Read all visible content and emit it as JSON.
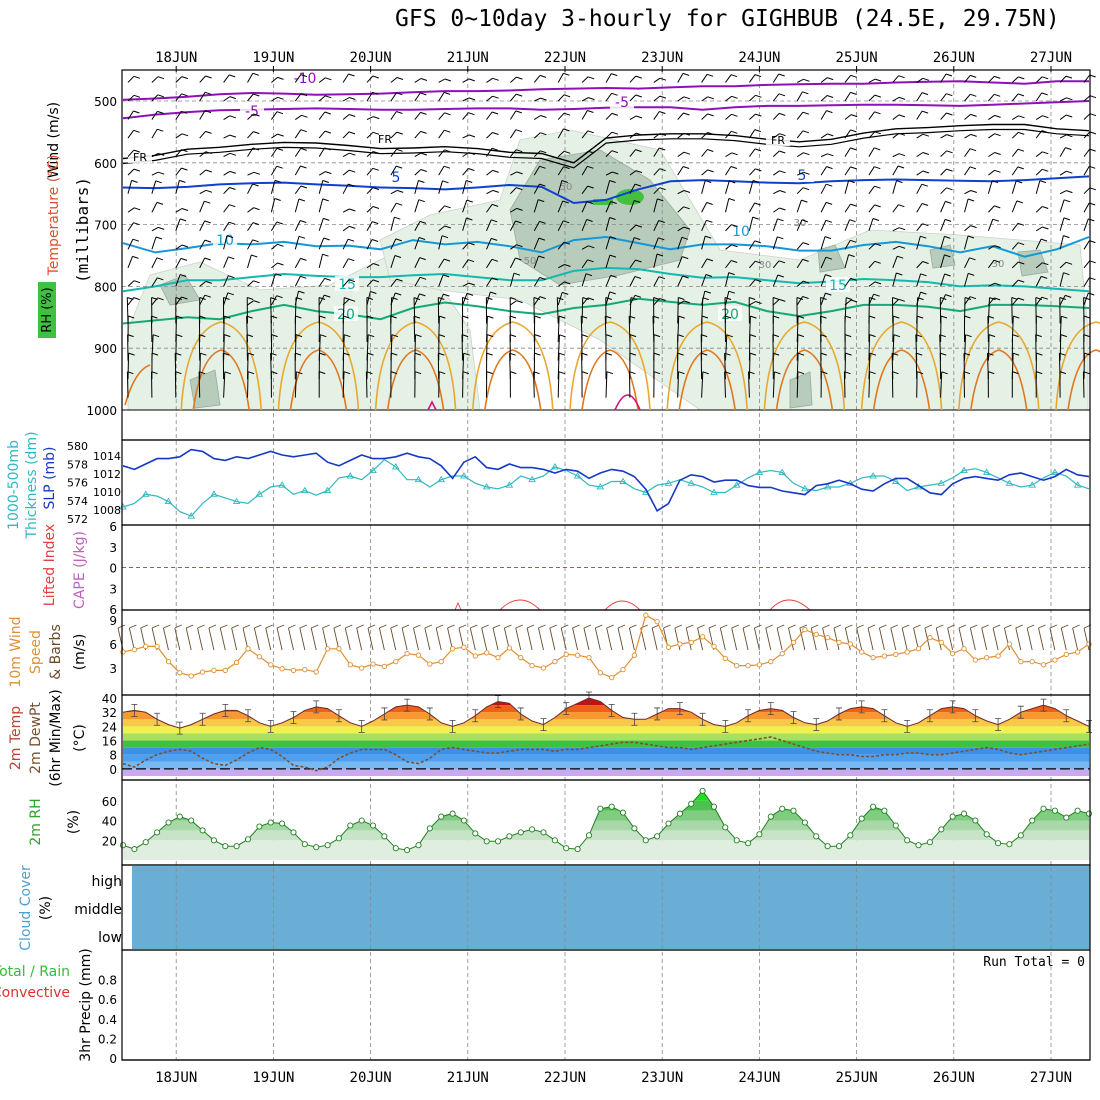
{
  "title": "GFS 0~10day 3-hourly for GIGHBUB (24.5E, 29.75N)",
  "dates": [
    "18JUN",
    "19JUN",
    "20JUN",
    "21JUN",
    "22JUN",
    "23JUN",
    "24JUN",
    "25JUN",
    "26JUN",
    "27JUN"
  ],
  "panel_labels": {
    "profile": {
      "wind": "Wind (m/s)",
      "temp": "Temperature (°C)",
      "rh": "RH (%)",
      "units": "(millibars)"
    },
    "thickness": {
      "a": "1000-500mb",
      "b": "Thickness (dm)",
      "c": "SLP (mb)"
    },
    "li": {
      "a": "Lifted Index",
      "b": "CAPE (J/kg)"
    },
    "wind10": {
      "a": "10m Wind",
      "b": "Speed",
      "c": "& Barbs",
      "d": "(m/s)"
    },
    "temp2m": {
      "a": "2m Temp",
      "b": "2m DewPt",
      "c": "(6hr Min/Max)",
      "d": "(°C)"
    },
    "rh2m": {
      "a": "2m RH",
      "b": "(%)"
    },
    "cloud": {
      "a": "Cloud Cover",
      "b": "(%)",
      "high": "high",
      "middle": "middle",
      "low": "low"
    },
    "precip": {
      "a": "Total / Rain",
      "b": "Convective",
      "c": "3hr Precip (mm)",
      "run_total": "Run Total = 0"
    }
  },
  "chart_data": [
    {
      "type": "contour",
      "name": "pressure-profile",
      "ylabel": "millibars",
      "yticks": [
        500,
        600,
        700,
        800,
        900,
        1000
      ],
      "ylim": [
        1000,
        450
      ],
      "temperature_labels": [
        "-10",
        "-5",
        "-5",
        "FR",
        "FR",
        "FR",
        "5",
        "5",
        "10",
        "10",
        "15",
        "15",
        "20",
        "20"
      ],
      "rh_labels": [
        "30",
        "30",
        "30",
        "50",
        "50"
      ],
      "temperature_isotherms": [
        {
          "label": "-10",
          "color": "#9010b8",
          "mb": [
            498,
            496,
            493,
            489,
            487,
            488,
            490,
            489,
            488,
            486,
            484,
            484,
            483,
            481,
            480,
            479,
            480,
            478,
            476,
            476,
            474,
            473,
            472,
            472,
            470,
            469,
            468,
            470,
            472,
            468,
            468
          ]
        },
        {
          "label": "-5",
          "color": "#9010b8",
          "mb": [
            528,
            522,
            518,
            515,
            514,
            513,
            512,
            513,
            514,
            514,
            513,
            512,
            512,
            514,
            513,
            511,
            510,
            510,
            514,
            510,
            508,
            508,
            507,
            506,
            506,
            507,
            508,
            506,
            504,
            502,
            500
          ]
        },
        {
          "label": "FR",
          "color": "#000000",
          "mb": [
            593,
            588,
            578,
            575,
            570,
            567,
            568,
            572,
            577,
            576,
            574,
            577,
            583,
            585,
            600,
            560,
            555,
            553,
            553,
            556,
            562,
            566,
            562,
            552,
            545,
            543,
            540,
            538,
            538,
            545,
            548
          ]
        },
        {
          "label": "5",
          "color": "#1040d0",
          "mb": [
            640,
            641,
            639,
            635,
            633,
            632,
            635,
            637,
            640,
            641,
            643,
            640,
            636,
            639,
            665,
            660,
            643,
            630,
            628,
            630,
            632,
            633,
            630,
            628,
            627,
            628,
            629,
            630,
            628,
            625,
            622
          ]
        },
        {
          "label": "10",
          "color": "#1498d8",
          "mb": [
            730,
            745,
            738,
            730,
            732,
            728,
            735,
            734,
            740,
            725,
            732,
            728,
            735,
            745,
            725,
            720,
            730,
            740,
            732,
            732,
            735,
            742,
            742,
            733,
            728,
            735,
            745,
            735,
            752,
            740,
            720
          ]
        },
        {
          "label": "15",
          "color": "#14b8b0",
          "mb": [
            808,
            800,
            790,
            790,
            785,
            780,
            783,
            785,
            785,
            782,
            780,
            785,
            790,
            790,
            775,
            770,
            772,
            780,
            786,
            785,
            790,
            795,
            792,
            788,
            790,
            793,
            800,
            798,
            800,
            804,
            808
          ]
        },
        {
          "label": "20",
          "color": "#14a878",
          "mb": [
            860,
            855,
            850,
            853,
            840,
            830,
            840,
            845,
            853,
            835,
            826,
            832,
            840,
            845,
            835,
            830,
            820,
            825,
            830,
            825,
            840,
            848,
            840,
            830,
            830,
            833,
            840,
            830,
            830,
            832,
            835
          ]
        }
      ]
    },
    {
      "type": "line",
      "name": "thickness-slp",
      "x_days": 10,
      "series": [
        {
          "name": "1000-500mb Thickness (dm)",
          "color": "#30b8c0",
          "values": [
            573.2,
            573.6,
            574.6,
            574.4,
            573.8,
            572.7,
            572.2,
            573.6,
            574.6,
            574.2,
            573.8,
            573.6,
            574.6,
            575.4,
            575.6,
            574.6,
            575.0,
            574.5,
            575.0,
            576.4,
            576.6,
            576.2,
            577.2,
            578.4,
            577.6,
            576.2,
            576.2,
            575.4,
            576.2,
            576.6,
            576.6,
            575.8,
            575.4,
            575.2,
            575.6,
            576.6,
            576.2,
            576.6,
            577.6,
            577.2,
            576.6,
            575.6,
            575.4,
            576.0,
            576.0,
            575.2,
            574.8,
            575.6,
            575.8,
            576.2,
            575.8,
            575.4,
            574.8,
            574.8,
            575.6,
            576.4,
            577.0,
            577.2,
            577.0,
            575.8,
            575.2,
            575.0,
            575.4,
            575.4,
            575.8,
            576.4,
            576.6,
            576.6,
            576.0,
            575.0,
            575.4,
            575.6,
            575.8,
            576.4,
            577.2,
            577.4,
            577.0,
            576.4,
            575.8,
            575.4,
            575.6,
            576.4,
            577.0,
            576.6,
            575.6,
            575.2
          ]
        },
        {
          "name": "SLP (mb)",
          "color": "#1638c8",
          "values": [
            1012.8,
            1012.4,
            1013.0,
            1013.6,
            1013.6,
            1013.8,
            1014.6,
            1014.4,
            1013.6,
            1013.4,
            1013.8,
            1013.6,
            1014.0,
            1014.4,
            1014.0,
            1013.8,
            1014.0,
            1014.2,
            1013.2,
            1012.8,
            1013.4,
            1014.0,
            1013.6,
            1013.6,
            1013.8,
            1014.2,
            1013.8,
            1013.6,
            1012.8,
            1011.4,
            1013.2,
            1013.8,
            1012.6,
            1012.4,
            1013.0,
            1012.6,
            1012.6,
            1012.4,
            1012.0,
            1012.4,
            1012.2,
            1011.4,
            1012.0,
            1012.4,
            1012.2,
            1011.6,
            1010.2,
            1007.8,
            1008.6,
            1011.2,
            1011.8,
            1011.6,
            1011.0,
            1011.2,
            1011.2,
            1010.6,
            1010.4,
            1010.4,
            1010.0,
            1009.8,
            1009.6,
            1010.6,
            1010.8,
            1011.2,
            1010.8,
            1010.2,
            1010.0,
            1010.8,
            1011.4,
            1011.4,
            1010.6,
            1009.8,
            1009.6,
            1010.8,
            1011.4,
            1011.6,
            1011.4,
            1011.2,
            1011.8,
            1012.0,
            1011.6,
            1011.2,
            1011.6,
            1012.4,
            1011.8,
            1011.6
          ]
        }
      ],
      "yticks_thickness": [
        "580",
        "578",
        "576",
        "574",
        "572"
      ],
      "yticks_slp": [
        "1014",
        "1012",
        "1010",
        "1008"
      ]
    },
    {
      "type": "line",
      "name": "lifted-index",
      "yticks": [
        "6",
        "3",
        "0",
        "3",
        "6"
      ],
      "ylim": [
        6,
        -6
      ]
    },
    {
      "type": "line",
      "name": "wind-10m",
      "yticks": [
        "9",
        "6",
        "3"
      ],
      "ylim": [
        0,
        10
      ],
      "series": [
        {
          "name": "Speed",
          "color": "#e09030",
          "values": [
            5.0,
            5.3,
            5.7,
            5.7,
            3.8,
            2.4,
            2.0,
            2.5,
            2.7,
            2.7,
            3.7,
            5.4,
            4.4,
            3.4,
            2.9,
            2.7,
            2.8,
            2.5,
            5.4,
            5.4,
            3.4,
            3.0,
            3.5,
            3.2,
            3.8,
            4.8,
            4.6,
            3.5,
            3.8,
            5.4,
            5.6,
            4.5,
            4.9,
            4.3,
            5.5,
            4.3,
            3.3,
            3.0,
            3.8,
            4.7,
            4.6,
            4.3,
            2.4,
            1.8,
            2.8,
            4.6,
            9.6,
            8.8,
            5.6,
            6.0,
            6.2,
            6.9,
            5.7,
            4.2,
            3.3,
            3.3,
            3.4,
            3.8,
            4.8,
            6.2,
            7.8,
            7.2,
            6.8,
            6.2,
            6.0,
            5.0,
            4.3,
            4.5,
            4.7,
            5.0,
            5.4,
            6.8,
            6.2,
            4.8,
            5.4,
            4.0,
            4.3,
            4.5,
            6.0,
            3.8,
            3.8,
            3.4,
            4.0,
            4.7,
            5.0,
            6.0
          ]
        }
      ]
    },
    {
      "type": "area",
      "name": "temp-2m",
      "yticks": [
        "40",
        "32",
        "24",
        "16",
        "8",
        "0"
      ],
      "ylim": [
        -4,
        40
      ],
      "series": [
        {
          "name": "2m Temp",
          "values": [
            32,
            33,
            32,
            28,
            25,
            23,
            25,
            28,
            31,
            33,
            33,
            30,
            26,
            24,
            26,
            29,
            33,
            35,
            34,
            30,
            26,
            24,
            27,
            31,
            35,
            36,
            35,
            31,
            26,
            24,
            26,
            30,
            35,
            38,
            37,
            31,
            27,
            25,
            29,
            34,
            37,
            40,
            38,
            33,
            29,
            28,
            28,
            31,
            34,
            34,
            32,
            28,
            25,
            24,
            26,
            30,
            33,
            34,
            33,
            29,
            26,
            25,
            27,
            31,
            34,
            35,
            34,
            30,
            26,
            24,
            26,
            30,
            34,
            35,
            34,
            30,
            27,
            25,
            28,
            32,
            34,
            36,
            34,
            30,
            27,
            24
          ]
        },
        {
          "name": "2m DewPt",
          "values": [
            3,
            1,
            5,
            8,
            10,
            11,
            10,
            6,
            3,
            2,
            5,
            9,
            12,
            11,
            7,
            2,
            1,
            -1,
            1,
            6,
            9,
            11,
            11,
            11,
            8,
            4,
            3,
            6,
            11,
            12,
            11,
            10,
            9,
            9,
            10,
            11,
            11,
            11,
            10,
            11,
            11,
            12,
            13,
            14,
            15,
            15,
            14,
            13,
            12,
            12,
            11,
            12,
            13,
            14,
            15,
            16,
            17,
            18,
            16,
            14,
            12,
            10,
            9,
            8,
            8,
            7,
            7,
            8,
            8,
            9,
            9,
            8,
            8,
            9,
            10,
            11,
            12,
            11,
            9,
            8,
            9,
            10,
            11,
            12,
            13,
            14
          ]
        }
      ]
    },
    {
      "type": "area",
      "name": "rh-2m",
      "yticks": [
        "60",
        "40",
        "20"
      ],
      "ylim": [
        0,
        75
      ],
      "series": [
        {
          "name": "2m RH",
          "values": [
            15,
            11,
            18,
            28,
            38,
            44,
            40,
            30,
            20,
            14,
            14,
            21,
            34,
            38,
            37,
            28,
            16,
            13,
            15,
            22,
            35,
            40,
            35,
            24,
            12,
            10,
            15,
            32,
            44,
            47,
            40,
            27,
            19,
            19,
            24,
            28,
            31,
            28,
            20,
            12,
            11,
            25,
            52,
            54,
            48,
            32,
            20,
            24,
            37,
            47,
            57,
            70,
            54,
            33,
            20,
            17,
            26,
            44,
            52,
            50,
            38,
            24,
            14,
            14,
            25,
            42,
            54,
            50,
            35,
            20,
            15,
            18,
            31,
            44,
            47,
            40,
            26,
            17,
            16,
            25,
            40,
            52,
            50,
            43,
            50,
            47
          ]
        }
      ]
    },
    {
      "type": "heatmap",
      "name": "cloud-cover",
      "rows": [
        "high",
        "middle",
        "low"
      ],
      "value": 0
    },
    {
      "type": "bar",
      "name": "precip-3hr",
      "yticks": [
        "0.8",
        "0.6",
        "0.4",
        "0.2",
        "0"
      ],
      "ylim": [
        0,
        1.0
      ],
      "values": []
    }
  ]
}
